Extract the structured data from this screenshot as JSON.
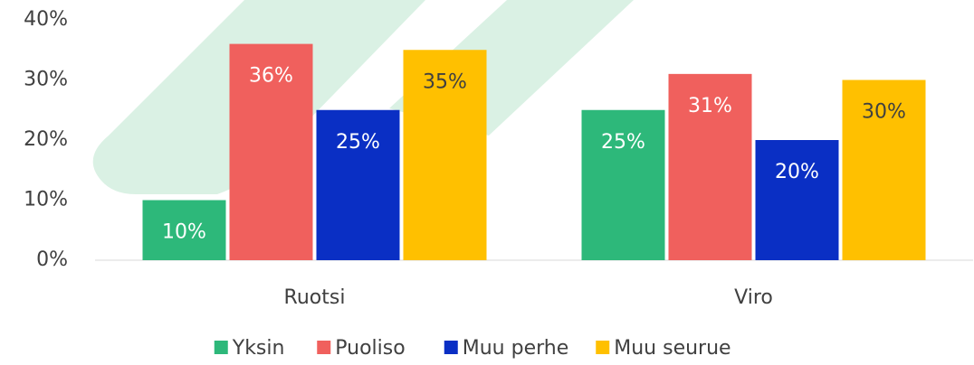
{
  "chart_data": {
    "type": "bar",
    "categories": [
      "Ruotsi",
      "Viro"
    ],
    "series": [
      {
        "name": "Yksin",
        "color": "#2db87a",
        "values": [
          10,
          25
        ],
        "value_labels": [
          "10%",
          "25%"
        ]
      },
      {
        "name": "Puoliso",
        "color": "#f0605d",
        "values": [
          36,
          31
        ],
        "value_labels": [
          "36%",
          "31%"
        ]
      },
      {
        "name": "Muu perhe",
        "color": "#0a2fc4",
        "values": [
          25,
          20
        ],
        "value_labels": [
          "25%",
          "20%"
        ]
      },
      {
        "name": "Muu seurue",
        "color": "#ffc000",
        "values": [
          35,
          30
        ],
        "value_labels": [
          "35%",
          "30%"
        ]
      }
    ],
    "ylim": [
      0,
      40
    ],
    "yticks": [
      {
        "value": 0,
        "label": "0%"
      },
      {
        "value": 10,
        "label": "10%"
      },
      {
        "value": 20,
        "label": "20%"
      },
      {
        "value": 30,
        "label": "30%"
      },
      {
        "value": 40,
        "label": "40%"
      }
    ],
    "legend": "bottom"
  }
}
